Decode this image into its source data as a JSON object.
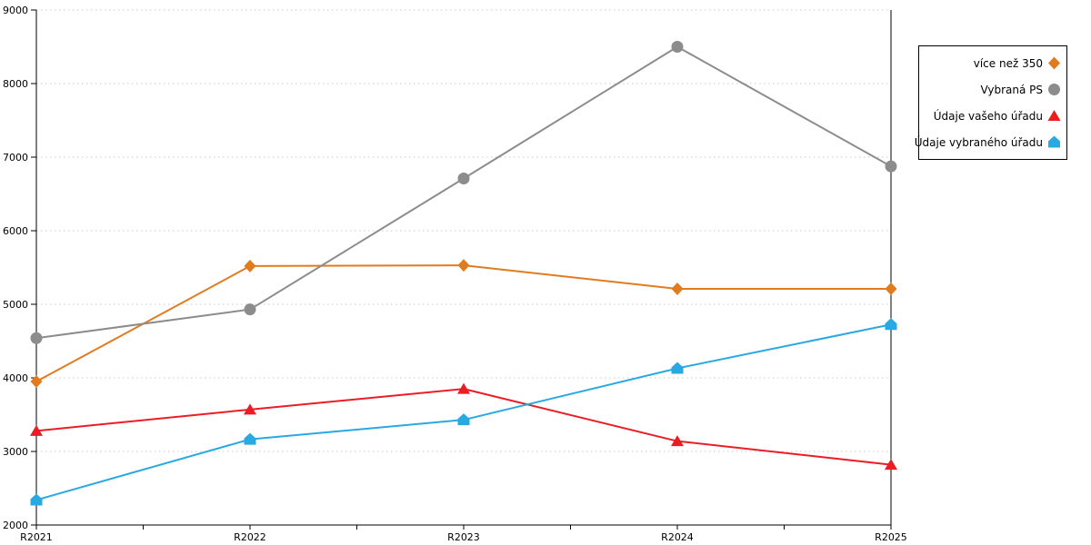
{
  "chart_data": {
    "type": "line",
    "categories": [
      "R2021",
      "R2022",
      "R2023",
      "R2024",
      "R2025"
    ],
    "series": [
      {
        "name": "více než 350",
        "color": "#E07C1F",
        "marker": "diamond",
        "values": [
          3950,
          5520,
          5530,
          5210,
          5210
        ]
      },
      {
        "name": "Vybraná PS",
        "color": "#8C8C8C",
        "marker": "circle",
        "values": [
          4540,
          4930,
          6710,
          8500,
          6875
        ]
      },
      {
        "name": "Údaje vašeho úřadu",
        "color": "#EC1C24",
        "marker": "triangle",
        "values": [
          3280,
          3570,
          3850,
          3140,
          2820
        ]
      },
      {
        "name": "Údaje vybraného úřadu",
        "color": "#29A9E1",
        "marker": "pentagon",
        "values": [
          2340,
          3165,
          3430,
          4130,
          4725
        ]
      }
    ],
    "title": "",
    "xlabel": "",
    "ylabel": "",
    "ylim": [
      2000,
      9000
    ],
    "yticks": [
      2000,
      3000,
      4000,
      5000,
      6000,
      7000,
      8000,
      9000
    ],
    "grid": "horizontal-dotted",
    "legend_position": "right-outside",
    "colors": {
      "background": "#ffffff",
      "grid": "#c8c8c8",
      "axis": "#000000",
      "tick_label": "#000000"
    }
  },
  "legend": {
    "items": [
      {
        "label": "více než 350"
      },
      {
        "label": "Vybraná PS"
      },
      {
        "label": "Údaje vašeho úřadu"
      },
      {
        "label": "Údaje vybraného úřadu"
      }
    ]
  }
}
